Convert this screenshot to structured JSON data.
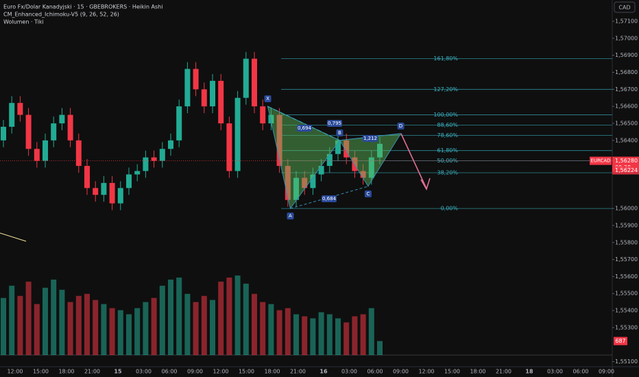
{
  "chart_data": {
    "type": "candlestick",
    "title": "Euro Fx/Dolar Kanadyjski · 15 · GBEBROKERS · Heikin Ashi",
    "indicators": [
      "CM_Enhanced_Ichimoku-V5 (9, 26, 52, 26)",
      "Wolumen · Tiki"
    ],
    "currency": "CAD",
    "symbol": "EURCAD",
    "up_color": "#22ab94",
    "down_color": "#f23645",
    "ylim": [
      1.5507,
      1.57225
    ],
    "yticks": [
      {
        "value": 1.571,
        "label": "1,57100"
      },
      {
        "value": 1.57,
        "label": "1,57000"
      },
      {
        "value": 1.569,
        "label": "1,56900"
      },
      {
        "value": 1.568,
        "label": "1,56800"
      },
      {
        "value": 1.567,
        "label": "1,56700"
      },
      {
        "value": 1.566,
        "label": "1,56600"
      },
      {
        "value": 1.565,
        "label": "1,56500"
      },
      {
        "value": 1.564,
        "label": "1,56400"
      },
      {
        "value": 1.56,
        "label": "1,56000"
      },
      {
        "value": 1.559,
        "label": "1,55900"
      },
      {
        "value": 1.558,
        "label": "1,55800"
      },
      {
        "value": 1.557,
        "label": "1,55700"
      },
      {
        "value": 1.556,
        "label": "1,55600"
      },
      {
        "value": 1.555,
        "label": "1,55500"
      },
      {
        "value": 1.554,
        "label": "1,55400"
      },
      {
        "value": 1.553,
        "label": "1,55300"
      },
      {
        "value": 1.551,
        "label": "1,55100"
      }
    ],
    "grid": false,
    "x_labels": [
      "12:00",
      "15:00",
      "18:00",
      "21:00",
      "15",
      "03:00",
      "06:00",
      "09:00",
      "12:00",
      "15:00",
      "18:00",
      "21:00",
      "16",
      "03:00",
      "06:00",
      "09:00",
      "12:00",
      "15:00",
      "18:00",
      "21:00",
      "18",
      "03:00",
      "06:00",
      "09:00"
    ],
    "open": [
      1.564,
      1.5648,
      1.5662,
      1.5655,
      1.5635,
      1.5628,
      1.564,
      1.565,
      1.5655,
      1.564,
      1.5625,
      1.5612,
      1.5608,
      1.5615,
      1.5603,
      1.5612,
      1.562,
      1.5622,
      1.563,
      1.5628,
      1.5635,
      1.564,
      1.566,
      1.5682,
      1.567,
      1.566,
      1.5675,
      1.565,
      1.5622,
      1.5665,
      1.5688,
      1.566,
      1.565,
      1.5655,
      1.5625,
      1.5605,
      1.5618,
      1.5612,
      1.562,
      1.5625,
      1.5632,
      1.564,
      1.563,
      1.5622,
      1.5618,
      1.563
    ],
    "high": [
      1.5652,
      1.5666,
      1.5666,
      1.5659,
      1.5639,
      1.5644,
      1.5654,
      1.5659,
      1.5659,
      1.5644,
      1.5629,
      1.5616,
      1.5619,
      1.5619,
      1.5616,
      1.5624,
      1.5626,
      1.5634,
      1.5634,
      1.5639,
      1.5644,
      1.5664,
      1.5686,
      1.5686,
      1.5674,
      1.5679,
      1.5679,
      1.5654,
      1.5669,
      1.5692,
      1.5692,
      1.5664,
      1.5659,
      1.5659,
      1.5629,
      1.5622,
      1.5622,
      1.5624,
      1.5629,
      1.5636,
      1.5644,
      1.5644,
      1.5634,
      1.5626,
      1.5634,
      1.5642
    ],
    "low": [
      1.5636,
      1.5644,
      1.5651,
      1.5631,
      1.5624,
      1.5624,
      1.5636,
      1.5646,
      1.5636,
      1.5621,
      1.5608,
      1.5604,
      1.5604,
      1.5599,
      1.5599,
      1.5608,
      1.5616,
      1.5618,
      1.5624,
      1.5624,
      1.5631,
      1.5636,
      1.5656,
      1.5666,
      1.5656,
      1.5656,
      1.5646,
      1.5618,
      1.5618,
      1.5661,
      1.5656,
      1.5646,
      1.5646,
      1.5621,
      1.5601,
      1.5601,
      1.5608,
      1.5608,
      1.5616,
      1.5621,
      1.5628,
      1.5626,
      1.5618,
      1.5614,
      1.5614,
      1.5626
    ],
    "close": [
      1.5648,
      1.5662,
      1.5655,
      1.5635,
      1.5628,
      1.564,
      1.565,
      1.5655,
      1.564,
      1.5625,
      1.5612,
      1.5608,
      1.5615,
      1.5603,
      1.5612,
      1.562,
      1.5622,
      1.563,
      1.5628,
      1.5635,
      1.564,
      1.566,
      1.5682,
      1.567,
      1.566,
      1.5675,
      1.565,
      1.5622,
      1.5665,
      1.5688,
      1.566,
      1.565,
      1.5655,
      1.5625,
      1.5605,
      1.5618,
      1.5612,
      1.562,
      1.5625,
      1.5632,
      1.564,
      1.563,
      1.5622,
      1.5618,
      1.563,
      1.5638
    ],
    "volume": [
      2800,
      3400,
      2900,
      3600,
      2500,
      3300,
      3700,
      3200,
      2600,
      2900,
      3000,
      2700,
      2500,
      2300,
      2200,
      2000,
      2300,
      2600,
      2800,
      3400,
      3700,
      3800,
      3000,
      2600,
      2900,
      2700,
      3600,
      3800,
      3900,
      3500,
      3000,
      2600,
      2500,
      2200,
      2300,
      2000,
      1900,
      1800,
      2100,
      2000,
      1800,
      1600,
      1900,
      2000,
      2300,
      687
    ],
    "volume_ylim": [
      0,
      4200
    ],
    "fib_levels": [
      {
        "label": "161,80%",
        "price": 1.5688
      },
      {
        "label": "127,20%",
        "price": 1.567
      },
      {
        "label": "100,00%",
        "price": 1.5655
      },
      {
        "label": "88,60%",
        "price": 1.5649
      },
      {
        "label": "78,60%",
        "price": 1.5643
      },
      {
        "label": "61,80%",
        "price": 1.5634
      },
      {
        "label": "50,00%",
        "price": 1.5628
      },
      {
        "label": "38,20%",
        "price": 1.5621
      },
      {
        "label": "0,00%",
        "price": 1.56
      }
    ],
    "pattern_points": [
      {
        "label": "X",
        "x": 31.6,
        "price": 1.566
      },
      {
        "label": "A",
        "x": 34.3,
        "price": 1.56
      },
      {
        "label": "B",
        "x": 40.2,
        "price": 1.564
      },
      {
        "label": "C",
        "x": 43.6,
        "price": 1.5613
      },
      {
        "label": "D",
        "x": 47.5,
        "price": 1.5644
      }
    ],
    "pattern_ratios": [
      "0,694",
      "0,795",
      "1,212",
      "0,684"
    ],
    "last_price": {
      "value": 1.5628,
      "label": "1,56280"
    },
    "countdown": "09:38",
    "prev_price": {
      "value": 1.56224,
      "label": "1,56224"
    }
  }
}
